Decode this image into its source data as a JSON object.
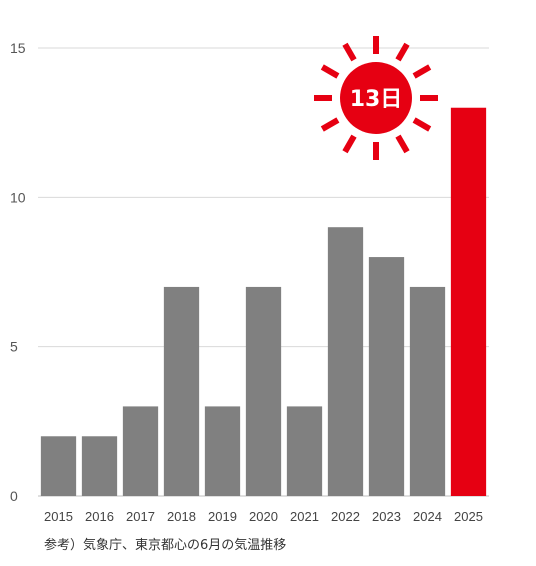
{
  "chart_data": {
    "type": "bar",
    "categories": [
      "2015",
      "2016",
      "2017",
      "2018",
      "2019",
      "2020",
      "2021",
      "2022",
      "2023",
      "2024",
      "2025"
    ],
    "values": [
      2,
      2,
      3,
      7,
      3,
      7,
      3,
      9,
      8,
      7,
      13
    ],
    "ylim": [
      0,
      15
    ],
    "yticks": [
      0,
      5,
      10,
      15
    ],
    "grid": true,
    "highlight_index": 10,
    "annotation": "13日"
  },
  "colors": {
    "bar": "#808080",
    "highlight": "#e60012",
    "grid": "#d9d9d9"
  },
  "note": "参考）気象庁、東京都心の6月の気温推移"
}
